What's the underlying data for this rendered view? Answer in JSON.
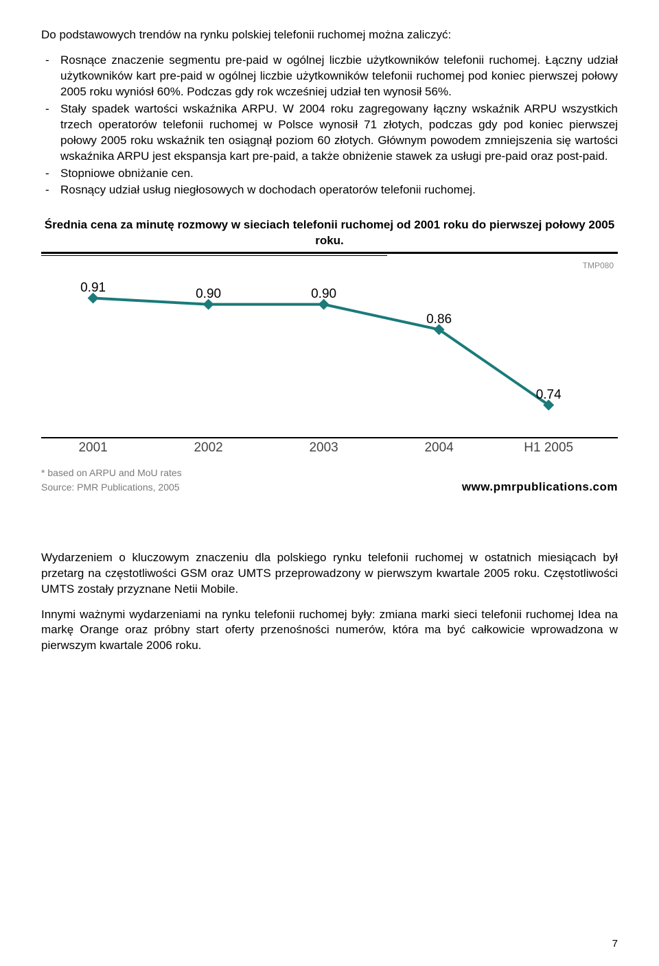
{
  "intro": "Do podstawowych trendów na rynku polskiej telefonii ruchomej można zaliczyć:",
  "bullets": [
    "Rosnące znaczenie segmentu pre-paid w ogólnej liczbie użytkowników telefonii ruchomej. Łączny udział użytkowników kart pre-paid w ogólnej liczbie użytkowników telefonii ruchomej pod koniec pierwszej połowy 2005 roku wyniósł 60%. Podczas gdy rok wcześniej udział ten wynosił 56%.",
    "Stały spadek wartości wskaźnika ARPU. W 2004 roku zagregowany łączny wskaźnik ARPU wszystkich trzech operatorów telefonii ruchomej w Polsce wynosił 71 złotych, podczas gdy pod koniec pierwszej połowy 2005 roku wskaźnik ten osiągnął poziom 60 złotych. Głównym powodem zmniejszenia się wartości wskaźnika ARPU jest ekspansja kart pre-paid, a także obniżenie stawek za usługi pre-paid oraz post-paid.",
    "Stopniowe obniżanie cen.",
    "Rosnący udział usług niegłosowych w dochodach operatorów telefonii ruchomej."
  ],
  "chart": {
    "title": "Średnia cena za minutę rozmowy w sieciach telefonii ruchomej od 2001 roku do pierwszej połowy 2005 roku.",
    "watermark": "TMP080",
    "type": "line",
    "categories": [
      "2001",
      "2002",
      "2003",
      "2004",
      "H1 2005"
    ],
    "values": [
      0.91,
      0.9,
      0.9,
      0.86,
      0.74
    ],
    "labels": [
      "0.91",
      "0.90",
      "0.90",
      "0.86",
      "0.74"
    ],
    "x_positions_pct": [
      9,
      29,
      49,
      69,
      88
    ],
    "line_color": "#1b7a7a",
    "marker_color": "#1b7a7a",
    "marker": "diamond",
    "marker_size": 16,
    "line_width": 4,
    "ylim": [
      0.7,
      0.94
    ],
    "label_fontsize": 19,
    "xlabel_fontsize": 19,
    "xlabel_color": "#444444",
    "background_color": "#ffffff",
    "footnote": "* based on ARPU and MoU rates",
    "source": "Source: PMR Publications, 2005",
    "source_url": "www.pmrpublications.com"
  },
  "para2": "Wydarzeniem o kluczowym znaczeniu dla polskiego rynku telefonii ruchomej w ostatnich miesiącach był przetarg na częstotliwości GSM oraz UMTS przeprowadzony w pierwszym kwartale 2005 roku. Częstotliwości UMTS zostały przyznane Netii Mobile.",
  "para3": "Innymi ważnymi wydarzeniami na rynku telefonii ruchomej były: zmiana marki sieci telefonii ruchomej Idea na markę Orange oraz próbny start oferty przenośności numerów, która ma być całkowicie wprowadzona w pierwszym kwartale 2006 roku.",
  "page_number": "7"
}
